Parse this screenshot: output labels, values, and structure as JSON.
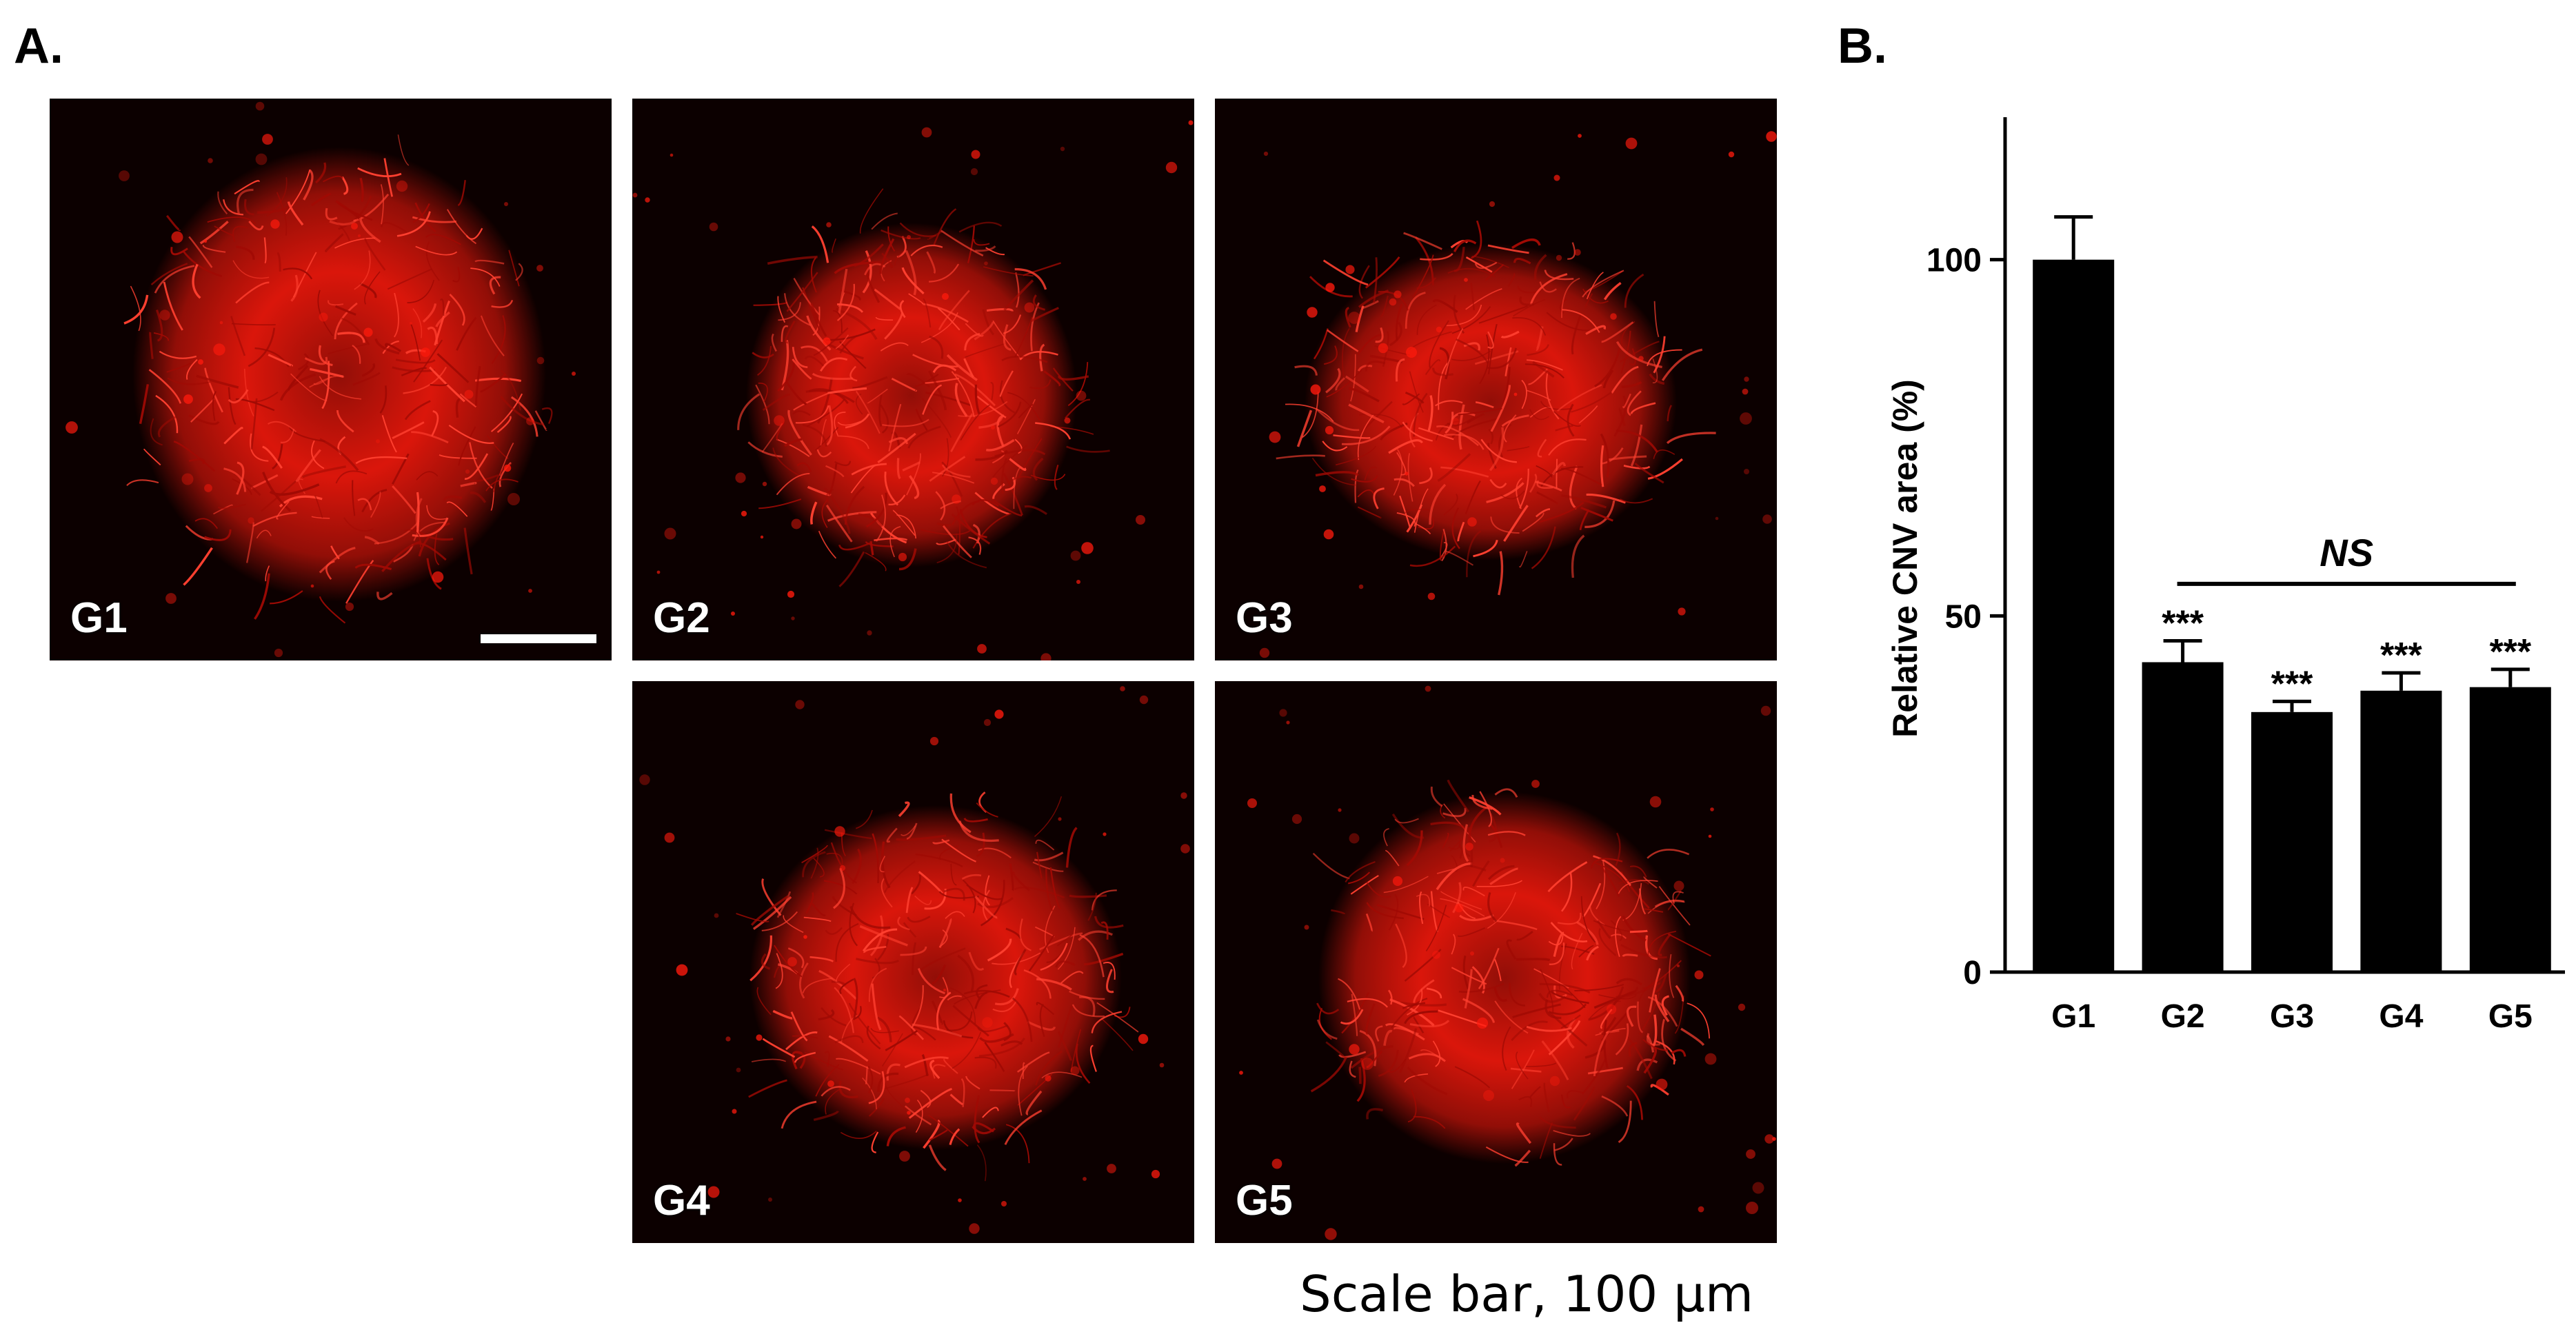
{
  "panels": {
    "a_label": "A.",
    "b_label": "B.",
    "scale_caption": "Scale bar, 100 µm"
  },
  "images": [
    {
      "label": "G1",
      "stain_color": "#ff1a0d",
      "has_scale_bar": true
    },
    {
      "label": "G2",
      "stain_color": "#ff1a0d",
      "has_scale_bar": false
    },
    {
      "label": "G3",
      "stain_color": "#ff1a0d",
      "has_scale_bar": false
    },
    {
      "label": "G4",
      "stain_color": "#ff1a0d",
      "has_scale_bar": false
    },
    {
      "label": "G5",
      "stain_color": "#ff1a0d",
      "has_scale_bar": false
    }
  ],
  "chart_data": {
    "type": "bar",
    "categories": [
      "G1",
      "G2",
      "G3",
      "G4",
      "G5"
    ],
    "values": [
      100,
      43.5,
      36.5,
      39.5,
      40
    ],
    "errors": [
      6,
      3,
      1.5,
      2.5,
      2.5
    ],
    "significance": [
      "",
      "***",
      "***",
      "***",
      "***"
    ],
    "comparison_label": "NS",
    "comparison_span": [
      "G2",
      "G5"
    ],
    "ylabel": "Relative CNV area (%)",
    "xlabel": "",
    "ylim": [
      0,
      120
    ],
    "yticks": [
      0,
      50,
      100
    ],
    "bar_color": "#000000",
    "grid": false
  }
}
